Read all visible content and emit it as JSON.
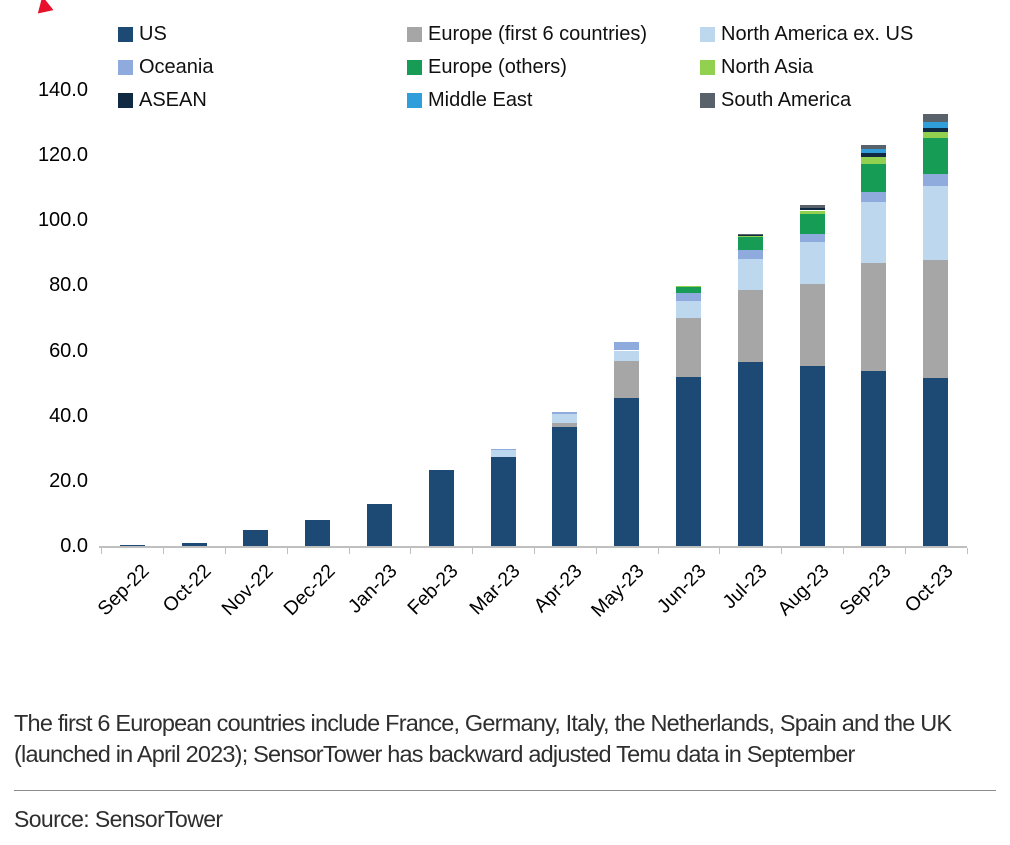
{
  "figure": {
    "footnote_line1": "The first 6 European countries include France, Germany, Italy, the Netherlands, Spain and the UK",
    "footnote_line2": "(launched in April 2023); SensorTower has backward adjusted Temu data in September",
    "source": "Source: SensorTower"
  },
  "chart_data": {
    "type": "bar",
    "stacked": true,
    "title": "",
    "xlabel": "",
    "ylabel": "",
    "grid": false,
    "legend_position": "top",
    "ylim": [
      0,
      140
    ],
    "ytick_step": 20,
    "ytick_labels": [
      "0.0",
      "20.0",
      "40.0",
      "60.0",
      "80.0",
      "100.0",
      "120.0",
      "140.0"
    ],
    "axis_color": "#bfbfbf",
    "accent_mark_color": "#e8112d",
    "categories": [
      "Sep-22",
      "Oct-22",
      "Nov-22",
      "Dec-22",
      "Jan-23",
      "Feb-23",
      "Mar-23",
      "Apr-23",
      "May-23",
      "Jun-23",
      "Jul-23",
      "Aug-23",
      "Sep-23",
      "Oct-23"
    ],
    "series": [
      {
        "name": "US",
        "color": "#1c4a74",
        "values": [
          0.2,
          1.0,
          5.0,
          8.0,
          12.8,
          23.5,
          27.3,
          36.6,
          45.4,
          52.0,
          56.5,
          55.3,
          53.7,
          51.6
        ]
      },
      {
        "name": "Europe (first 6 countries)",
        "color": "#a6a6a6",
        "values": [
          0,
          0,
          0,
          0,
          0,
          0,
          0,
          1.2,
          11.4,
          18.1,
          22.1,
          25.2,
          33.2,
          36.2
        ]
      },
      {
        "name": "North America ex. US",
        "color": "#bdd7ee",
        "values": [
          0,
          0,
          0,
          0,
          0,
          0,
          2.2,
          2.7,
          3.2,
          5.2,
          9.5,
          12.9,
          18.7,
          22.7
        ]
      },
      {
        "name": "Oceania",
        "color": "#8faadc",
        "values": [
          0,
          0,
          0,
          0,
          0,
          0,
          0.4,
          0.8,
          2.5,
          2.5,
          2.8,
          2.5,
          3.1,
          3.7
        ]
      },
      {
        "name": "Europe (others)",
        "color": "#169c54",
        "values": [
          0,
          0,
          0,
          0,
          0,
          0,
          0,
          0,
          0,
          1.8,
          4.0,
          6.1,
          8.6,
          11.0
        ]
      },
      {
        "name": "North Asia",
        "color": "#92d050",
        "values": [
          0,
          0,
          0,
          0,
          0,
          0,
          0,
          0,
          0,
          0.3,
          0.3,
          1.0,
          2.1,
          1.8
        ]
      },
      {
        "name": "ASEAN",
        "color": "#102a43",
        "values": [
          0,
          0,
          0,
          0,
          0,
          0,
          0,
          0,
          0,
          0,
          0.3,
          0.9,
          1.2,
          1.2
        ]
      },
      {
        "name": "Middle East",
        "color": "#2f9eda",
        "values": [
          0,
          0,
          0,
          0,
          0,
          0,
          0,
          0,
          0,
          0,
          0,
          0,
          1.2,
          2.1
        ]
      },
      {
        "name": "South America",
        "color": "#59616a",
        "values": [
          0,
          0,
          0,
          0,
          0,
          0,
          0,
          0,
          0,
          0,
          0.3,
          0.9,
          1.2,
          2.5
        ]
      }
    ],
    "legend_rows": [
      [
        "US",
        "Europe (first 6 countries)",
        "North America ex. US"
      ],
      [
        "Oceania",
        "Europe (others)",
        "North Asia"
      ],
      [
        "ASEAN",
        "Middle East",
        "South America"
      ]
    ]
  }
}
